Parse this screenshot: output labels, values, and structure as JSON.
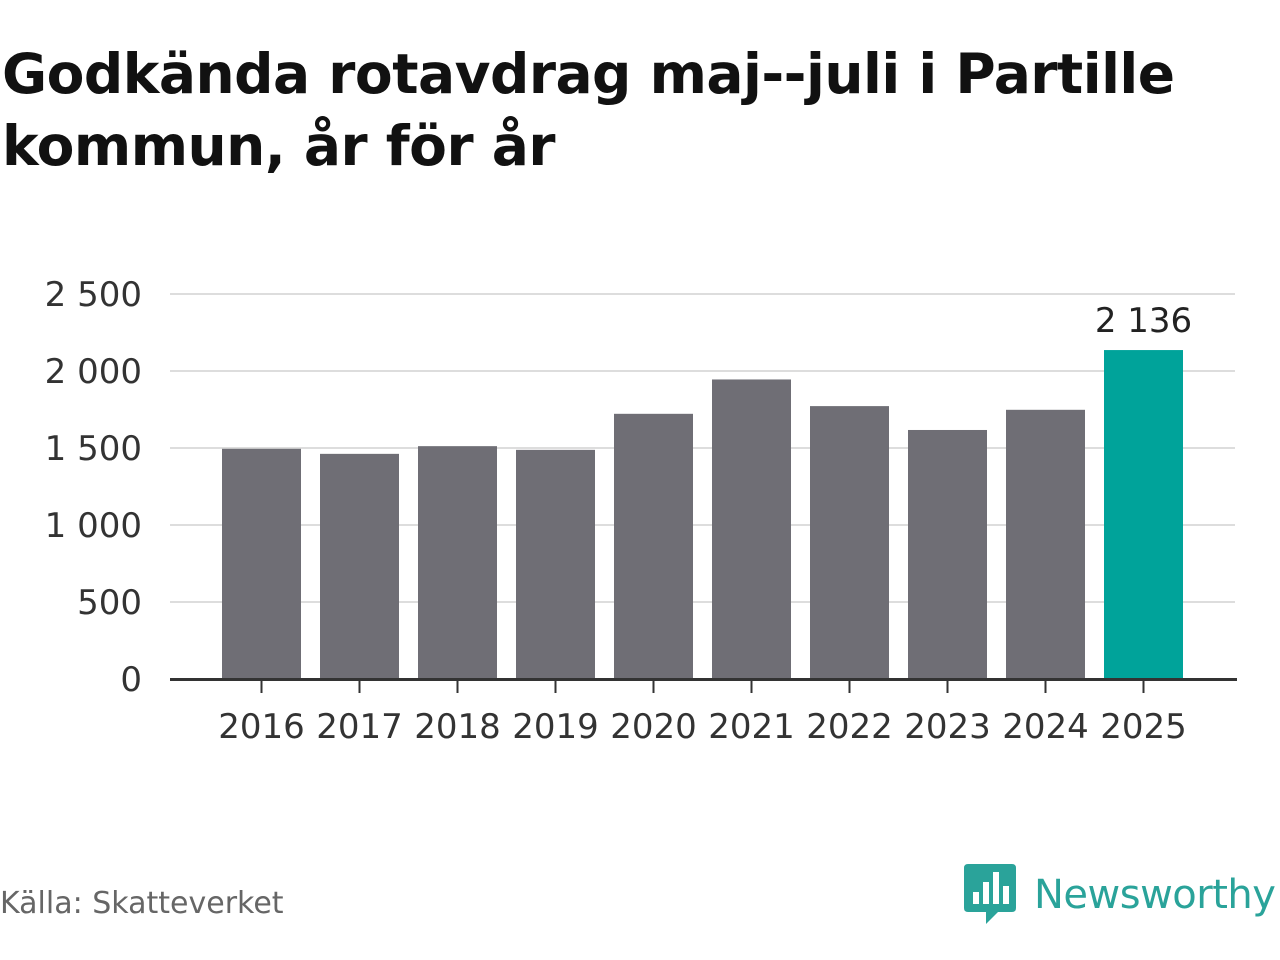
{
  "title": "Godkända rotavdrag maj--juli i Partille kommun, år för år",
  "source": "Källa: Skatteverket",
  "brand": {
    "name": "Newsworthy",
    "icon": "newsworthy-logo-icon",
    "color": "#2aa39a"
  },
  "colors": {
    "bar": "#6f6e75",
    "highlight": "#00a39a",
    "grid": "#dddddd",
    "axis": "#333333"
  },
  "chart_data": {
    "type": "bar",
    "categories": [
      "2016",
      "2017",
      "2018",
      "2019",
      "2020",
      "2021",
      "2022",
      "2023",
      "2024",
      "2025"
    ],
    "values": [
      1495,
      1462,
      1512,
      1488,
      1722,
      1945,
      1772,
      1617,
      1748,
      2136
    ],
    "highlight_index": 9,
    "data_labels": [
      {
        "category": "2025",
        "text": "2 136"
      }
    ],
    "y_ticks": [
      {
        "value": 0,
        "label": "0"
      },
      {
        "value": 500,
        "label": "500"
      },
      {
        "value": 1000,
        "label": "1 000"
      },
      {
        "value": 1500,
        "label": "1 500"
      },
      {
        "value": 2000,
        "label": "2 000"
      },
      {
        "value": 2500,
        "label": "2 500"
      }
    ],
    "ylim": [
      0,
      2500
    ],
    "grid": true,
    "legend": "none",
    "title": "Godkända rotavdrag maj--juli i Partille kommun, år för år"
  }
}
